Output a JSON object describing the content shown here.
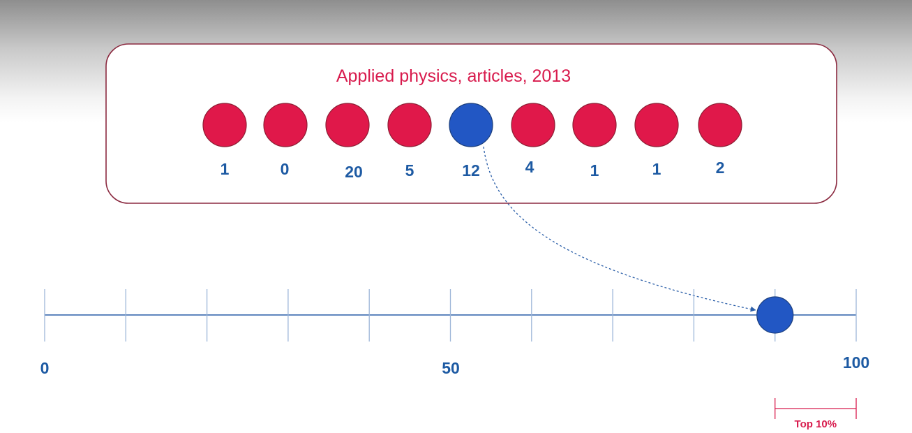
{
  "title": "Applied physics, articles, 2013",
  "articles": [
    {
      "citations": "1",
      "highlighted": false
    },
    {
      "citations": "0",
      "highlighted": false
    },
    {
      "citations": "20",
      "highlighted": false
    },
    {
      "citations": "5",
      "highlighted": false
    },
    {
      "citations": "12",
      "highlighted": true
    },
    {
      "citations": "4",
      "highlighted": false
    },
    {
      "citations": "1",
      "highlighted": false
    },
    {
      "citations": "1",
      "highlighted": false
    },
    {
      "citations": "2",
      "highlighted": false
    }
  ],
  "scale": {
    "labels": {
      "min": "0",
      "mid": "50",
      "max": "100"
    },
    "min": 0,
    "max": 100,
    "tick_step": 10,
    "marker_value": 90,
    "top_band": {
      "from": 90,
      "to": 100,
      "label": "Top 10%"
    }
  },
  "colors": {
    "accent": "#d81b4d",
    "article": "#e0184a",
    "article_border": "#8e1f35",
    "highlight": "#2257c4",
    "highlight_border": "#1c3f7d",
    "axis": "#2a5ea8",
    "tick": "#9db6d8",
    "label": "#1d5aa3",
    "box_border": "#8b2a40"
  }
}
